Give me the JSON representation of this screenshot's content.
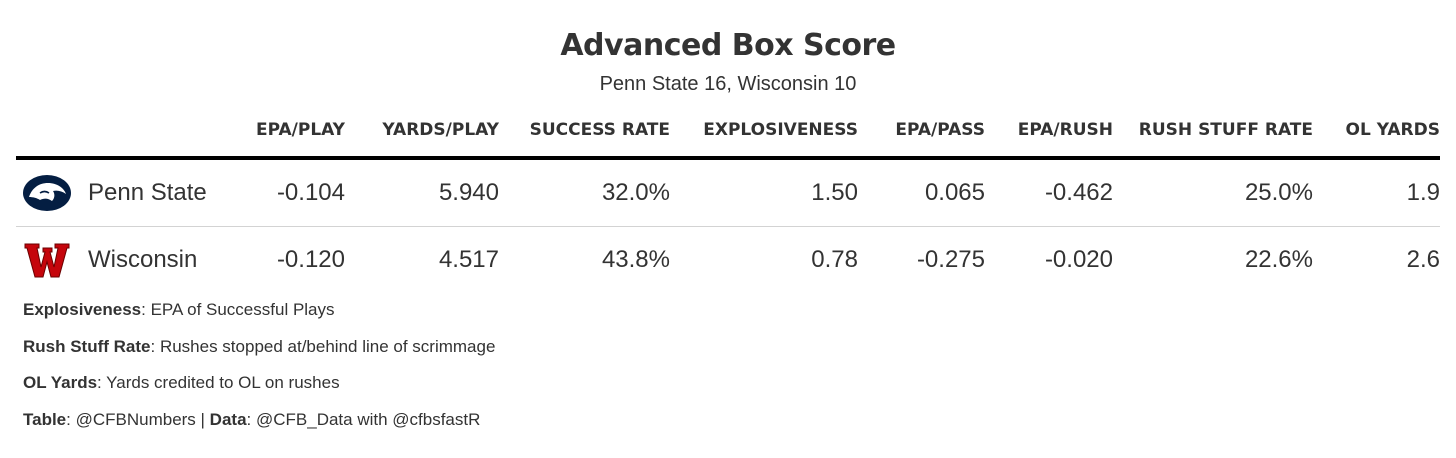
{
  "title": "Advanced Box Score",
  "subtitle": "Penn State 16, Wisconsin 10",
  "colors": {
    "text": "#333333",
    "header_rule": "#000000",
    "row_rule": "#d3d3d3",
    "penn_state_navy": "#041E42",
    "wisconsin_red": "#C5050C"
  },
  "chart_data": {
    "type": "table",
    "columns": [
      "",
      "EPA/PLAY",
      "YARDS/PLAY",
      "SUCCESS RATE",
      "EXPLOSIVENESS",
      "EPA/PASS",
      "EPA/RUSH",
      "RUSH STUFF RATE",
      "OL YARDS"
    ],
    "rows": [
      {
        "team": "Penn State",
        "logo": "penn-state-nittany-lion-logo",
        "values": [
          "-0.104",
          "5.940",
          "32.0%",
          "1.50",
          "0.065",
          "-0.462",
          "25.0%",
          "1.9"
        ]
      },
      {
        "team": "Wisconsin",
        "logo": "wisconsin-motion-w-logo",
        "values": [
          "-0.120",
          "4.517",
          "43.8%",
          "0.78",
          "-0.275",
          "-0.020",
          "22.6%",
          "2.6"
        ]
      }
    ]
  },
  "footnotes": [
    {
      "label": "Explosiveness",
      "text": ": EPA of Successful Plays"
    },
    {
      "label": "Rush Stuff Rate",
      "text": ": Rushes stopped at/behind line of scrimmage"
    },
    {
      "label": "OL Yards",
      "text": ": Yards credited to OL on rushes"
    },
    {
      "label": "Table",
      "text": ": @CFBNumbers | ",
      "label2": "Data",
      "text2": ": @CFB_Data with @cfbsfastR"
    }
  ]
}
